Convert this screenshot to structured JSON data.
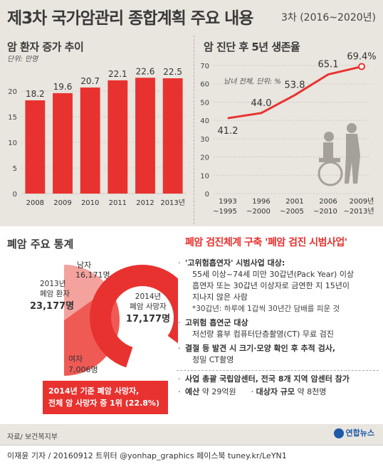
{
  "title": "제3차 국가암관리 종합계획 주요 내용",
  "period": "3차 (2016~2020년)",
  "chart_data": [
    {
      "type": "bar",
      "title": "암 환자 증가 추이",
      "unit_label": "단위: 만명",
      "categories": [
        "2008",
        "2009",
        "2010",
        "2011",
        "2012",
        "2013년"
      ],
      "values": [
        18.2,
        19.6,
        20.7,
        22.1,
        22.6,
        22.5
      ],
      "ylim": [
        0,
        25
      ],
      "yticks": [
        0,
        5,
        10,
        15,
        20
      ],
      "color": "#e8322f"
    },
    {
      "type": "line",
      "title": "암 진단 후 5년 생존율",
      "unit_label": "남녀 전체, 단위: %",
      "categories": [
        "1993 ~1995",
        "1996 ~2000",
        "2001 ~2005",
        "2006 ~2010",
        "2009년 ~2013년"
      ],
      "values": [
        41.2,
        44.0,
        53.8,
        65.1,
        69.4
      ],
      "value_labels": [
        "41.2",
        "44.0",
        "53.8",
        "65.1",
        "69.4%"
      ],
      "ylim": [
        0,
        70
      ],
      "yticks": [
        0,
        10,
        20,
        30,
        40,
        50,
        60,
        70
      ],
      "color": "#e8322f"
    },
    {
      "type": "pie",
      "title": "폐암 주요 통계",
      "charts": [
        {
          "name": "2013년 폐암 환자",
          "total": "23,177명",
          "slices": [
            {
              "name": "남자",
              "value": 16171,
              "label": "16,171명",
              "color": "#ef5a55"
            },
            {
              "name": "여자",
              "value": 7006,
              "label": "7,006명",
              "color": "#f3a29e"
            }
          ]
        },
        {
          "name": "2014년 폐암 사망자",
          "total": "17,177명",
          "slices": [
            {
              "name": "사망자",
              "value": 17177,
              "color": "#e8322f"
            }
          ]
        }
      ],
      "callout": [
        "2014년 기준 폐암 사망자,",
        "전체 암 사망자 중 1위 (22.8%)"
      ]
    }
  ],
  "panel": {
    "title": "폐암 검진체계 구축 '폐암 검진 시범사업'",
    "items": [
      {
        "bullet": "·",
        "head": "'고위험흡연자' 시범사업 대상:",
        "lines": [
          "55세 이상~74세 미만 30갑년(Pack Year) 이상",
          "흡연자 또는 30갑년 이상자로 금연한 지 15년이",
          "지나지 않은 사람"
        ],
        "note": "*30갑년: 하루에 1갑씩 30년간 담배를 피운 것"
      },
      {
        "bullet": "·",
        "head": "고위험 흡연군 대상",
        "lines": [
          "저선량 흉부 컴퓨터단층촬영(CT) 무료 검진"
        ]
      },
      {
        "bullet": "·",
        "head": "결절 등 발견 시 크기·모양 확인 후 추적 검사,",
        "lines": [
          "정밀 CT촬영"
        ]
      }
    ],
    "footer1": "사업 총괄 국립암센터, 전국 8개 지역 암센터 참가",
    "footer2a_label": "예산",
    "footer2a_value": "약 29억원",
    "footer2b_label": "대상자 규모",
    "footer2b_value": "약 8천명"
  },
  "source": "자료/ 보건복지부",
  "credit": "이재윤 기자 / 20160912  트위터 @yonhap_graphics  페이스북 tuney.kr/LeYN1",
  "logo": "연합뉴스"
}
